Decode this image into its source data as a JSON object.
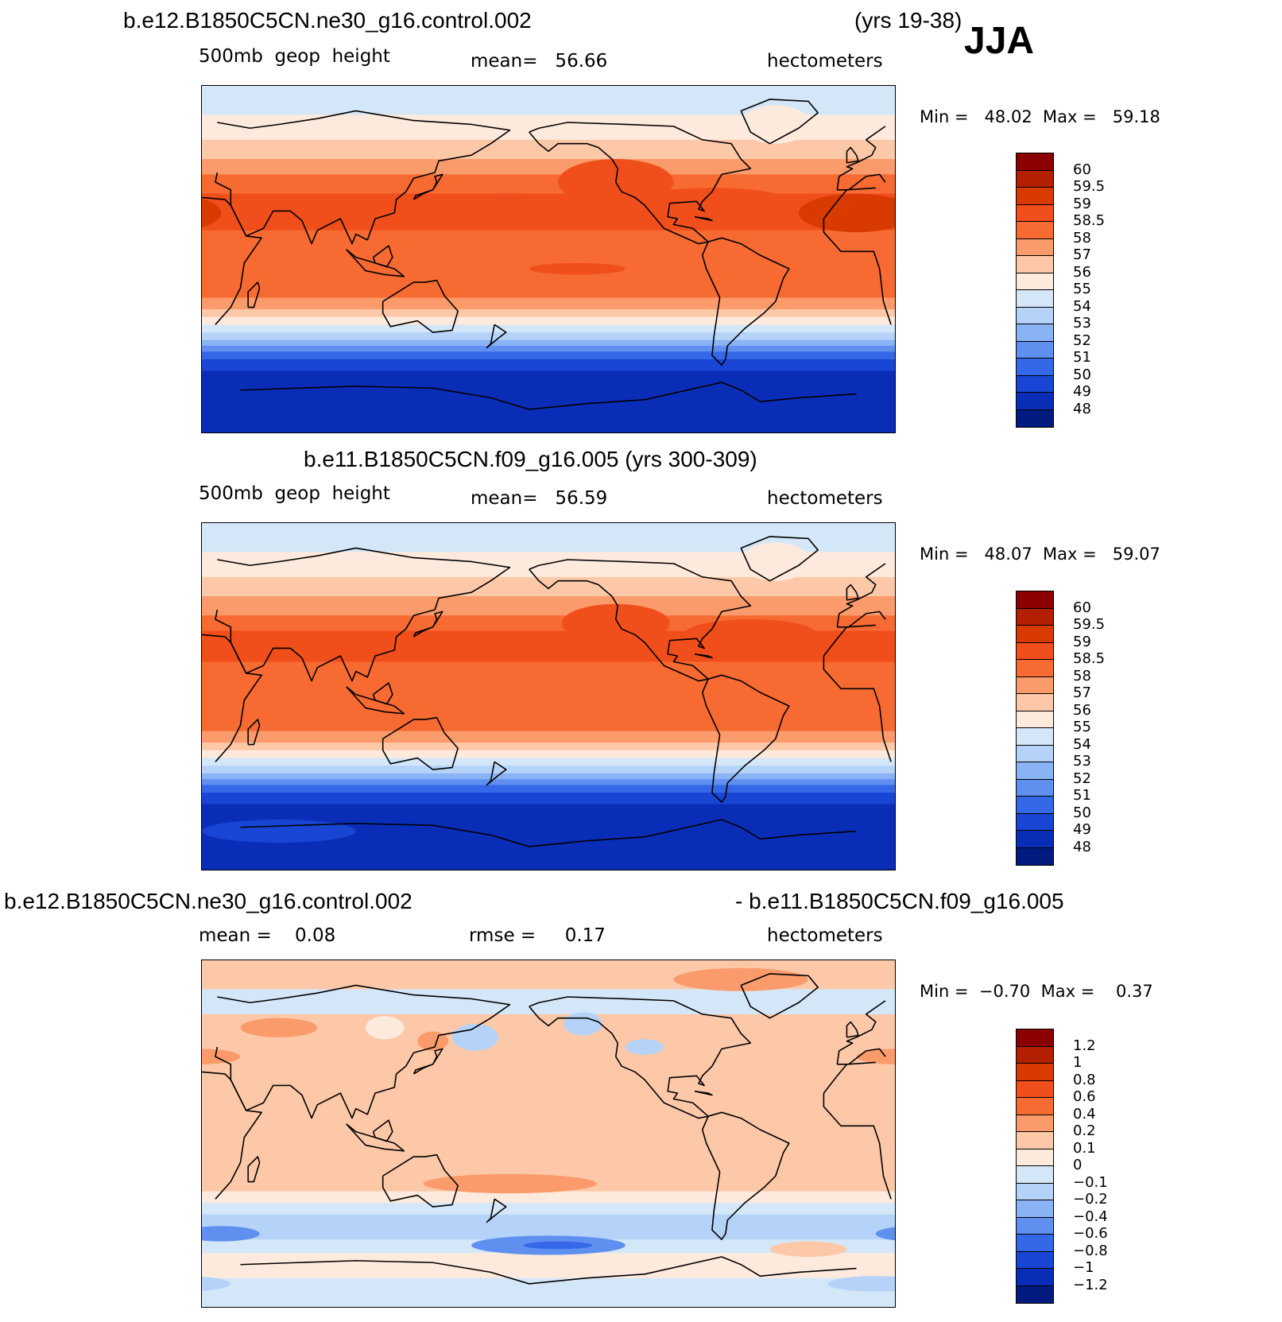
{
  "season": "JJA",
  "panels": [
    {
      "title": "b.e12.B1850C5CN.ne30_g16.control.002",
      "title_right": "(yrs 19-38)",
      "subtitle_left": "500mb  geop  height",
      "subtitle_mid": "mean=   56.66",
      "subtitle_right": "hectometers",
      "minmax": "Min =   48.02  Max =   59.18",
      "colorbar": {
        "labels": [
          "60",
          "59.5",
          "59",
          "58.5",
          "58",
          "57",
          "56",
          "55",
          "54",
          "53",
          "52",
          "51",
          "50",
          "49",
          "48"
        ],
        "colors": [
          "#8b0000",
          "#b22000",
          "#d93a00",
          "#f04e1a",
          "#f76a32",
          "#fb9a6a",
          "#fdc8a8",
          "#fdeadc",
          "#d4e7f8",
          "#b5d2f8",
          "#8ab3f5",
          "#5f90f0",
          "#3568e8",
          "#1845d3",
          "#0a2db8",
          "#001a80"
        ]
      },
      "map": {
        "lat_bands": [
          {
            "lat": [
              90,
              75
            ],
            "color": "#d4e7f8"
          },
          {
            "lat": [
              75,
              62
            ],
            "color": "#fdeadc"
          },
          {
            "lat": [
              62,
              52
            ],
            "color": "#fdc8a8"
          },
          {
            "lat": [
              52,
              44
            ],
            "color": "#fb9a6a"
          },
          {
            "lat": [
              44,
              34
            ],
            "color": "#f76a32"
          },
          {
            "lat": [
              34,
              15
            ],
            "color": "#f04e1a"
          },
          {
            "lat": [
              15,
              -20
            ],
            "color": "#f76a32"
          },
          {
            "lat": [
              -20,
              -26
            ],
            "color": "#fb9a6a"
          },
          {
            "lat": [
              -26,
              -30
            ],
            "color": "#fdc8a8"
          },
          {
            "lat": [
              -30,
              -34
            ],
            "color": "#fdeadc"
          },
          {
            "lat": [
              -34,
              -38
            ],
            "color": "#d4e7f8"
          },
          {
            "lat": [
              -38,
              -42
            ],
            "color": "#b5d2f8"
          },
          {
            "lat": [
              -42,
              -45
            ],
            "color": "#8ab3f5"
          },
          {
            "lat": [
              -45,
              -48
            ],
            "color": "#5f90f0"
          },
          {
            "lat": [
              -48,
              -52
            ],
            "color": "#3568e8"
          },
          {
            "lat": [
              -52,
              -58
            ],
            "color": "#1845d3"
          },
          {
            "lat": [
              -58,
              -90
            ],
            "color": "#0a2db8"
          }
        ],
        "patches": [
          {
            "lon": 0,
            "lat": 24,
            "rlon": 30,
            "rlat": 10,
            "color": "#d93a00"
          },
          {
            "lon": 180,
            "lat": 28,
            "rlon": 40,
            "rlat": 6,
            "color": "#f04e1a"
          },
          {
            "lon": 235,
            "lat": 40,
            "rlon": 30,
            "rlat": 12,
            "color": "#f04e1a"
          },
          {
            "lon": 285,
            "lat": 28,
            "rlon": 45,
            "rlat": 9,
            "color": "#f04e1a"
          },
          {
            "lon": 215,
            "lat": -5,
            "rlon": 25,
            "rlat": 3,
            "color": "#f04e1a"
          },
          {
            "lon": 318,
            "lat": 70,
            "rlon": 18,
            "rlat": 10,
            "color": "#fdeadc"
          }
        ]
      }
    },
    {
      "title": "b.e11.B1850C5CN.f09_g16.005 (yrs 300-309)",
      "subtitle_left": "500mb  geop  height",
      "subtitle_mid": "mean=   56.59",
      "subtitle_right": "hectometers",
      "minmax": "Min =   48.07  Max =   59.07",
      "colorbar": {
        "labels": [
          "60",
          "59.5",
          "59",
          "58.5",
          "58",
          "57",
          "56",
          "55",
          "54",
          "53",
          "52",
          "51",
          "50",
          "49",
          "48"
        ],
        "colors": [
          "#8b0000",
          "#b22000",
          "#d93a00",
          "#f04e1a",
          "#f76a32",
          "#fb9a6a",
          "#fdc8a8",
          "#fdeadc",
          "#d4e7f8",
          "#b5d2f8",
          "#8ab3f5",
          "#5f90f0",
          "#3568e8",
          "#1845d3",
          "#0a2db8",
          "#001a80"
        ]
      },
      "map": {
        "lat_bands": [
          {
            "lat": [
              90,
              75
            ],
            "color": "#d4e7f8"
          },
          {
            "lat": [
              75,
              62
            ],
            "color": "#fdeadc"
          },
          {
            "lat": [
              62,
              52
            ],
            "color": "#fdc8a8"
          },
          {
            "lat": [
              52,
              42
            ],
            "color": "#fb9a6a"
          },
          {
            "lat": [
              42,
              34
            ],
            "color": "#f76a32"
          },
          {
            "lat": [
              34,
              18
            ],
            "color": "#f04e1a"
          },
          {
            "lat": [
              18,
              -18
            ],
            "color": "#f76a32"
          },
          {
            "lat": [
              -18,
              -24
            ],
            "color": "#fb9a6a"
          },
          {
            "lat": [
              -24,
              -28
            ],
            "color": "#fdc8a8"
          },
          {
            "lat": [
              -28,
              -32
            ],
            "color": "#fdeadc"
          },
          {
            "lat": [
              -32,
              -36
            ],
            "color": "#d4e7f8"
          },
          {
            "lat": [
              -36,
              -40
            ],
            "color": "#b5d2f8"
          },
          {
            "lat": [
              -40,
              -43
            ],
            "color": "#8ab3f5"
          },
          {
            "lat": [
              -43,
              -46
            ],
            "color": "#5f90f0"
          },
          {
            "lat": [
              -46,
              -50
            ],
            "color": "#3568e8"
          },
          {
            "lat": [
              -50,
              -56
            ],
            "color": "#1845d3"
          },
          {
            "lat": [
              -56,
              -90
            ],
            "color": "#0a2db8"
          }
        ],
        "patches": [
          {
            "lon": 5,
            "lat": 28,
            "rlon": 35,
            "rlat": 6,
            "color": "#f04e1a"
          },
          {
            "lon": 150,
            "lat": 30,
            "rlon": 15,
            "rlat": 3,
            "color": "#f04e1a"
          },
          {
            "lon": 235,
            "lat": 38,
            "rlon": 28,
            "rlat": 10,
            "color": "#f04e1a"
          },
          {
            "lon": 305,
            "lat": 32,
            "rlon": 35,
            "rlat": 8,
            "color": "#f04e1a"
          },
          {
            "lon": 60,
            "lat": -70,
            "rlon": 40,
            "rlat": 6,
            "color": "#1845d3"
          },
          {
            "lon": 318,
            "lat": 70,
            "rlon": 18,
            "rlat": 10,
            "color": "#fdeadc"
          }
        ]
      }
    },
    {
      "title": "b.e12.B1850C5CN.ne30_g16.control.002",
      "title_right": "- b.e11.B1850C5CN.f09_g16.005",
      "subtitle_left": "mean =    0.08",
      "subtitle_mid": "rmse =     0.17",
      "subtitle_right": "hectometers",
      "minmax": "Min =  −0.70  Max =    0.37",
      "colorbar": {
        "labels": [
          "1.2",
          "1",
          "0.8",
          "0.6",
          "0.4",
          "0.2",
          "0.1",
          "0",
          "−0.1",
          "−0.2",
          "−0.4",
          "−0.6",
          "−0.8",
          "−1",
          "−1.2"
        ],
        "colors": [
          "#8b0000",
          "#b22000",
          "#d93a00",
          "#f04e1a",
          "#f76a32",
          "#fb9a6a",
          "#fdc8a8",
          "#fdeadc",
          "#d4e7f8",
          "#b5d2f8",
          "#8ab3f5",
          "#5f90f0",
          "#3568e8",
          "#1845d3",
          "#0a2db8",
          "#001a80"
        ]
      },
      "map": {
        "lat_bands": [
          {
            "lat": [
              90,
              75
            ],
            "color": "#fdc8a8"
          },
          {
            "lat": [
              75,
              62
            ],
            "color": "#d4e7f8"
          },
          {
            "lat": [
              62,
              -30
            ],
            "color": "#fdc8a8"
          },
          {
            "lat": [
              -30,
              -36
            ],
            "color": "#fdeadc"
          },
          {
            "lat": [
              -36,
              -42
            ],
            "color": "#d4e7f8"
          },
          {
            "lat": [
              -42,
              -55
            ],
            "color": "#b5d2f8"
          },
          {
            "lat": [
              -55,
              -62
            ],
            "color": "#d4e7f8"
          },
          {
            "lat": [
              -62,
              -75
            ],
            "color": "#fdeadc"
          },
          {
            "lat": [
              -75,
              -90
            ],
            "color": "#d4e7f8"
          }
        ],
        "patches": [
          {
            "lon": 60,
            "lat": 55,
            "rlon": 20,
            "rlat": 5,
            "color": "#fb9a6a"
          },
          {
            "lon": 140,
            "lat": 48,
            "rlon": 8,
            "rlat": 5,
            "color": "#fb9a6a"
          },
          {
            "lon": 162,
            "lat": 50,
            "rlon": 12,
            "rlat": 7,
            "color": "#b5d2f8"
          },
          {
            "lon": 218,
            "lat": 57,
            "rlon": 10,
            "rlat": 6,
            "color": "#b5d2f8"
          },
          {
            "lon": 250,
            "lat": 45,
            "rlon": 10,
            "rlat": 4,
            "color": "#b5d2f8"
          },
          {
            "lon": 300,
            "lat": 80,
            "rlon": 35,
            "rlat": 6,
            "color": "#fb9a6a"
          },
          {
            "lon": 115,
            "lat": 55,
            "rlon": 10,
            "rlat": 6,
            "color": "#fdeadc"
          },
          {
            "lon": 20,
            "lat": 40,
            "rlon": 20,
            "rlat": 4,
            "color": "#fb9a6a"
          },
          {
            "lon": 180,
            "lat": -26,
            "rlon": 45,
            "rlat": 5,
            "color": "#fb9a6a"
          },
          {
            "lon": 30,
            "lat": -52,
            "rlon": 20,
            "rlat": 4,
            "color": "#5f90f0"
          },
          {
            "lon": 200,
            "lat": -58,
            "rlon": 40,
            "rlat": 5,
            "color": "#5f90f0"
          },
          {
            "lon": 205,
            "lat": -58,
            "rlon": 18,
            "rlat": 2,
            "color": "#3568e8"
          },
          {
            "lon": 335,
            "lat": -60,
            "rlon": 20,
            "rlat": 4,
            "color": "#fdc8a8"
          },
          {
            "lon": 10,
            "lat": -78,
            "rlon": 25,
            "rlat": 4,
            "color": "#b5d2f8"
          },
          {
            "lon": 320,
            "lat": -5,
            "rlon": 15,
            "rlat": 20,
            "color": "#fdc8a8"
          }
        ]
      }
    }
  ]
}
